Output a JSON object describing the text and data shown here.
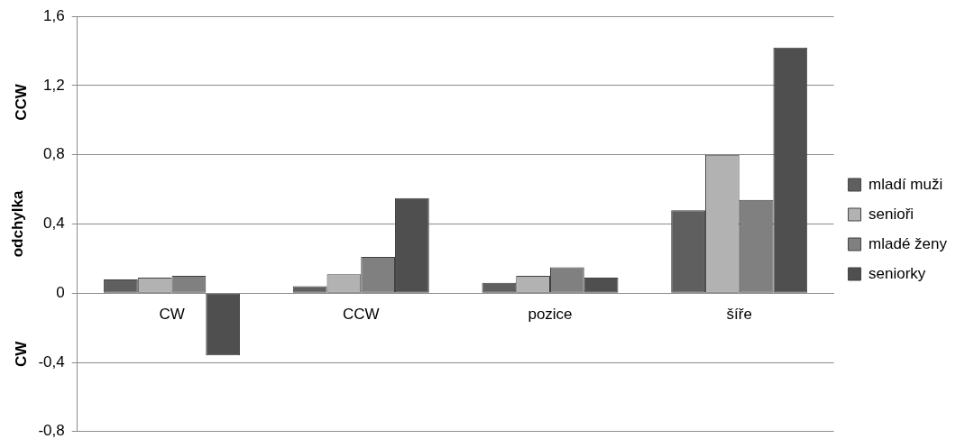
{
  "chart_data": {
    "type": "bar",
    "ylabel": "odchylka",
    "annotations": [
      "CCW",
      "CW"
    ],
    "categories": [
      "CW",
      "CCW",
      "pozice",
      "šíře"
    ],
    "series": [
      {
        "name": "mladí muži",
        "color": "#5f5f5f",
        "values": [
          0.08,
          0.04,
          0.06,
          0.48
        ]
      },
      {
        "name": "senioři",
        "color": "#b2b2b2",
        "values": [
          0.09,
          0.11,
          0.1,
          0.8
        ]
      },
      {
        "name": "mladé ženy",
        "color": "#808080",
        "values": [
          0.1,
          0.21,
          0.15,
          0.54
        ]
      },
      {
        "name": "seniorky",
        "color": "#4f4f4f",
        "values": [
          -0.36,
          0.55,
          0.09,
          1.42
        ]
      }
    ],
    "ylim": [
      -0.8,
      1.6
    ],
    "yticks": [
      {
        "value": -0.8,
        "label": "-0,8"
      },
      {
        "value": -0.4,
        "label": "-0,4"
      },
      {
        "value": 0,
        "label": "0"
      },
      {
        "value": 0.4,
        "label": "0,4"
      },
      {
        "value": 0.8,
        "label": "0,8"
      },
      {
        "value": 1.2,
        "label": "1,2"
      },
      {
        "value": 1.6,
        "label": "1,6"
      }
    ],
    "grid": "y",
    "legend": "right"
  }
}
